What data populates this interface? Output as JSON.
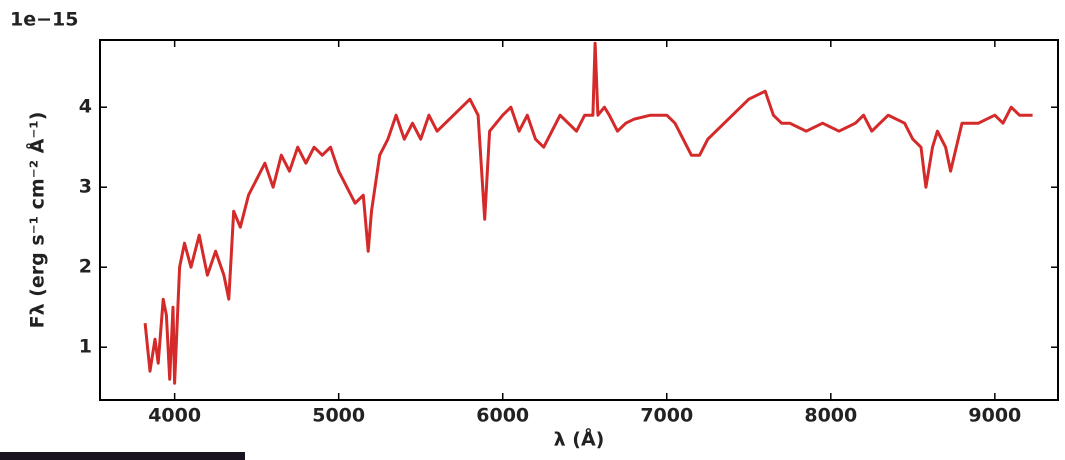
{
  "chart_data": {
    "type": "line",
    "x_label": "λ (Å)",
    "y_label": "Fλ (erg s⁻¹ cm⁻² Å⁻¹)",
    "y_offset_label": "1e−15",
    "xlim": [
      3545,
      9385
    ],
    "ylim": [
      0.34,
      4.84
    ],
    "xticks": [
      4000,
      5000,
      6000,
      7000,
      8000,
      9000
    ],
    "yticks": [
      1,
      2,
      3,
      4
    ],
    "x": [
      3820,
      3850,
      3880,
      3900,
      3930,
      3950,
      3970,
      3990,
      4000,
      4030,
      4060,
      4100,
      4150,
      4200,
      4250,
      4300,
      4330,
      4360,
      4400,
      4450,
      4500,
      4550,
      4600,
      4650,
      4700,
      4750,
      4800,
      4850,
      4900,
      4950,
      5000,
      5050,
      5100,
      5150,
      5180,
      5200,
      5250,
      5300,
      5350,
      5400,
      5450,
      5500,
      5550,
      5600,
      5650,
      5700,
      5750,
      5800,
      5850,
      5890,
      5920,
      6000,
      6050,
      6100,
      6150,
      6200,
      6250,
      6300,
      6350,
      6400,
      6450,
      6500,
      6550,
      6563,
      6580,
      6620,
      6650,
      6700,
      6750,
      6800,
      6900,
      7000,
      7050,
      7100,
      7150,
      7200,
      7250,
      7300,
      7400,
      7500,
      7550,
      7600,
      7650,
      7700,
      7750,
      7850,
      7950,
      8050,
      8150,
      8200,
      8250,
      8350,
      8450,
      8500,
      8550,
      8580,
      8620,
      8650,
      8700,
      8730,
      8800,
      8900,
      9000,
      9050,
      9100,
      9150,
      9200,
      9230
    ],
    "series": [
      {
        "color": "#d42a2a",
        "values": [
          1.3,
          0.7,
          1.1,
          0.8,
          1.6,
          1.4,
          0.6,
          1.5,
          0.55,
          2.0,
          2.3,
          2.0,
          2.4,
          1.9,
          2.2,
          1.9,
          1.6,
          2.7,
          2.5,
          2.9,
          3.1,
          3.3,
          3.0,
          3.4,
          3.2,
          3.5,
          3.3,
          3.5,
          3.4,
          3.5,
          3.2,
          3.0,
          2.8,
          2.9,
          2.2,
          2.7,
          3.4,
          3.6,
          3.9,
          3.6,
          3.8,
          3.6,
          3.9,
          3.7,
          3.8,
          3.9,
          4.0,
          4.1,
          3.9,
          2.6,
          3.7,
          3.9,
          4.0,
          3.7,
          3.9,
          3.6,
          3.5,
          3.7,
          3.9,
          3.8,
          3.7,
          3.9,
          3.9,
          4.8,
          3.9,
          4.0,
          3.9,
          3.7,
          3.8,
          3.85,
          3.9,
          3.9,
          3.8,
          3.6,
          3.4,
          3.4,
          3.6,
          3.7,
          3.9,
          4.1,
          4.15,
          4.2,
          3.9,
          3.8,
          3.8,
          3.7,
          3.8,
          3.7,
          3.8,
          3.9,
          3.7,
          3.9,
          3.8,
          3.6,
          3.5,
          3.0,
          3.5,
          3.7,
          3.5,
          3.2,
          3.8,
          3.8,
          3.9,
          3.8,
          4.0,
          3.9,
          3.9,
          3.9
        ]
      }
    ]
  }
}
